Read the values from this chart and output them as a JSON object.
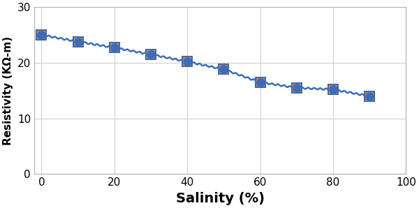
{
  "title": "",
  "xlabel": "Salinity (%)",
  "ylabel": "Resistivity (KΩ-m)",
  "xlim": [
    -2,
    100
  ],
  "ylim": [
    0,
    30
  ],
  "xticks": [
    0,
    20,
    40,
    60,
    80,
    100
  ],
  "yticks": [
    0,
    10,
    20,
    30
  ],
  "square_x": [
    0,
    10,
    20,
    30,
    40,
    50,
    60,
    70,
    80,
    90
  ],
  "square_y": [
    25.0,
    23.8,
    22.7,
    21.5,
    20.2,
    18.8,
    16.5,
    15.5,
    15.2,
    14.0
  ],
  "line_color": "#3B6CB7",
  "marker_fill_color": "#F07820",
  "marker_edge_color": "#3B6CB7",
  "background_color": "#ffffff",
  "grid_color": "#d0d0d0",
  "xlabel_fontsize": 14,
  "ylabel_fontsize": 11,
  "tick_fontsize": 11,
  "square_size": 10,
  "circle_size": 8,
  "linewidth": 1.8
}
